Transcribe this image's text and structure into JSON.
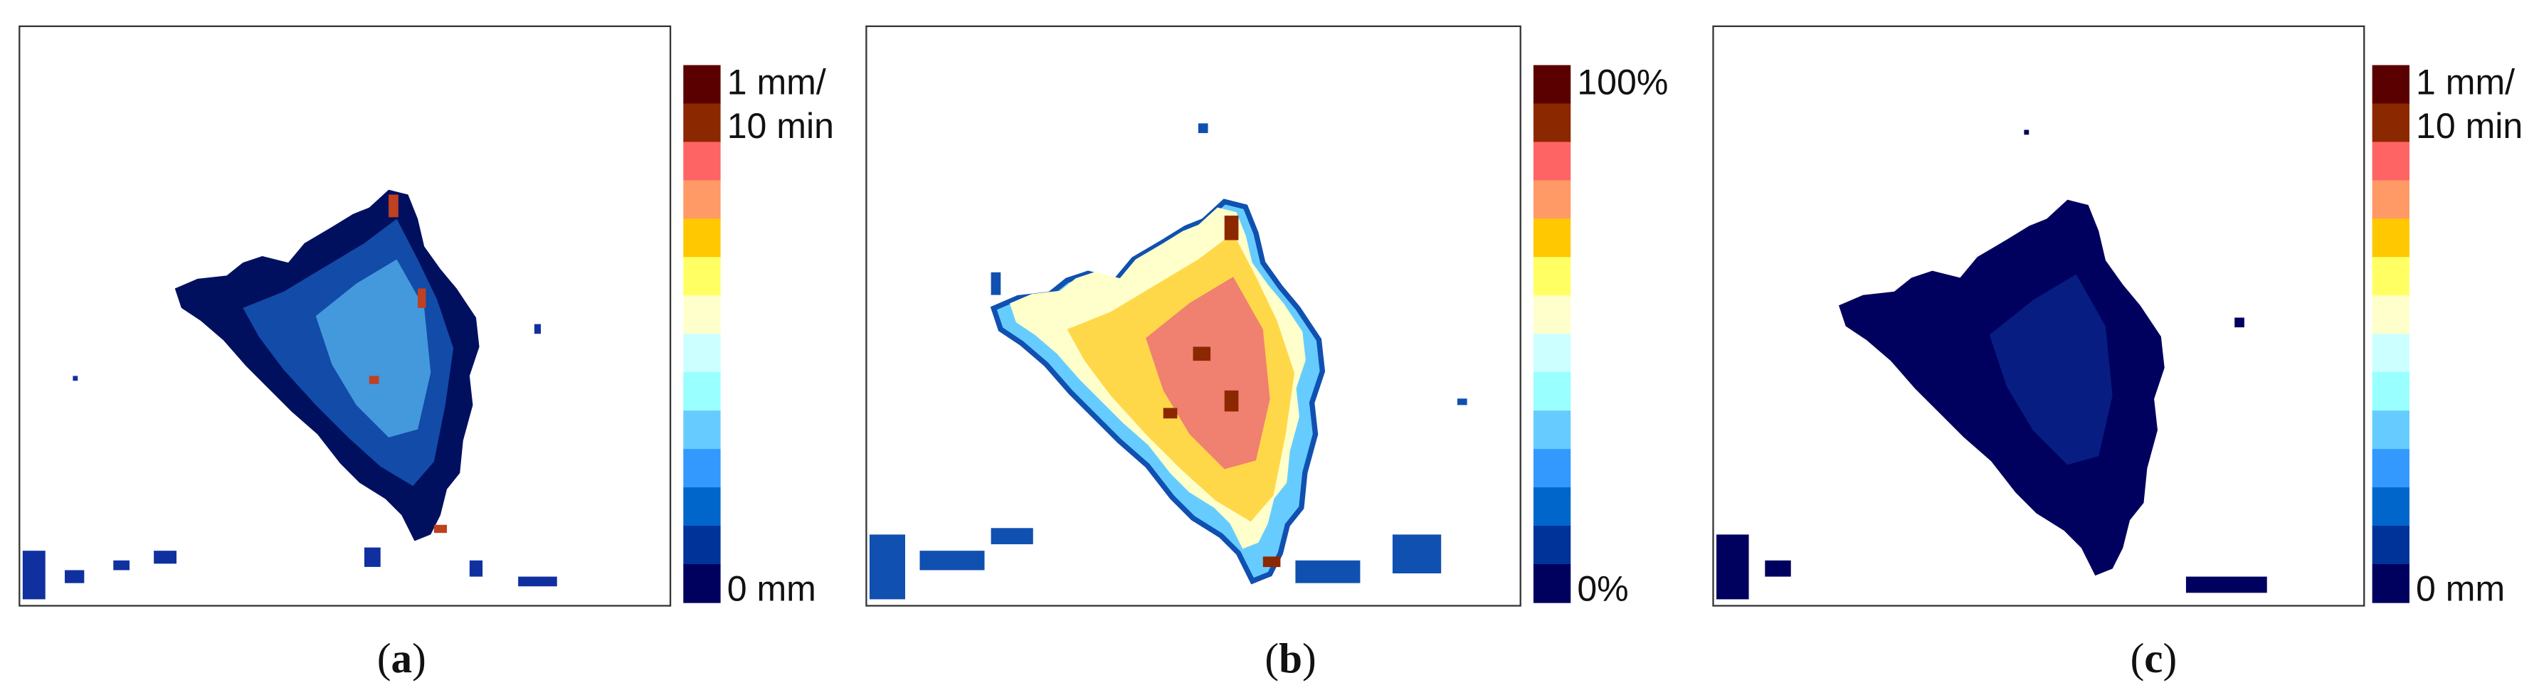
{
  "panels": [
    {
      "colorbar_top": [
        "1 mm/",
        "10 min"
      ],
      "colorbar_bottom": "0 mm",
      "caption": [
        "(",
        "a",
        ")"
      ]
    },
    {
      "colorbar_top": [
        "100%"
      ],
      "colorbar_bottom": "0%",
      "caption": [
        "(",
        "b",
        ")"
      ]
    },
    {
      "colorbar_top": [
        "1 mm/",
        "10 min"
      ],
      "colorbar_bottom": "0 mm",
      "caption": [
        "(",
        "c",
        ")"
      ]
    }
  ],
  "colorbar_colors": [
    "#5a0000",
    "#8c2800",
    "#ff6464",
    "#ff9966",
    "#ffc800",
    "#ffff64",
    "#ffffcc",
    "#ccffff",
    "#99ffff",
    "#66ccff",
    "#3399ff",
    "#0066cc",
    "#003399",
    "#00005f"
  ]
}
